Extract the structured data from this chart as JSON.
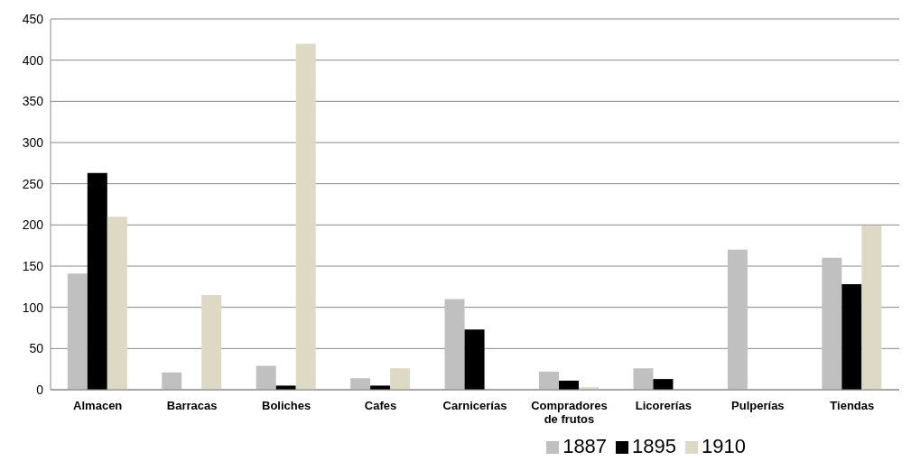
{
  "chart_data": {
    "type": "bar",
    "categories": [
      "Almacen",
      "Barracas",
      "Boliches",
      "Cafes",
      "Carnicerías",
      "Compradores de frutos",
      "Licorerías",
      "Pulperías",
      "Tiendas"
    ],
    "series": [
      {
        "name": "1887",
        "color": "#c0c0c0",
        "values": [
          141,
          21,
          29,
          14,
          110,
          22,
          26,
          170,
          160
        ]
      },
      {
        "name": "1895",
        "color": "#000000",
        "values": [
          263,
          null,
          5,
          5,
          73,
          11,
          13,
          null,
          128
        ]
      },
      {
        "name": "1910",
        "color": "#ddd9c3",
        "values": [
          210,
          115,
          420,
          26,
          null,
          3,
          null,
          null,
          199
        ]
      }
    ],
    "ylim": [
      0,
      450
    ],
    "yticks": [
      0,
      50,
      100,
      150,
      200,
      250,
      300,
      350,
      400,
      450
    ],
    "grid": "y",
    "legend": "bottom right"
  }
}
